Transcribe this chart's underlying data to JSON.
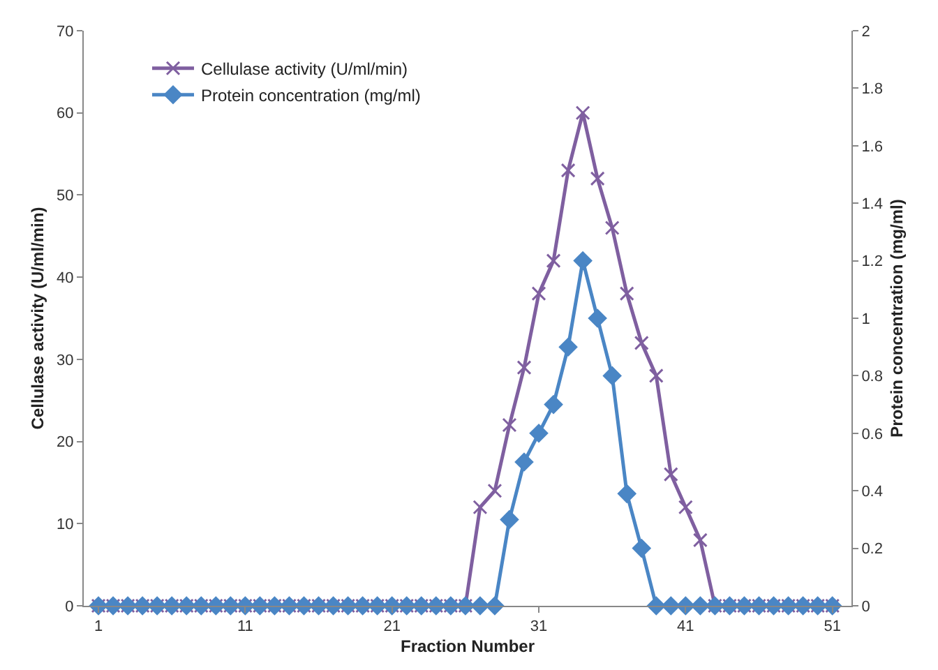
{
  "chart_data": {
    "type": "line",
    "xlabel": "Fraction Number",
    "ylabel": "Cellulase activity (U/ml/min)",
    "y2label": "Protein concentration (mg/ml)",
    "x": [
      1,
      2,
      3,
      4,
      5,
      6,
      7,
      8,
      9,
      10,
      11,
      12,
      13,
      14,
      15,
      16,
      17,
      18,
      19,
      20,
      21,
      22,
      23,
      24,
      25,
      26,
      27,
      28,
      29,
      30,
      31,
      32,
      33,
      34,
      35,
      36,
      37,
      38,
      39,
      40,
      41,
      42,
      43,
      44,
      45,
      46,
      47,
      48,
      49,
      50,
      51
    ],
    "xlim": [
      0,
      52.3
    ],
    "xticks": [
      1,
      11,
      21,
      31,
      41,
      51
    ],
    "ylim": [
      0,
      70
    ],
    "yticks": [
      0,
      10,
      20,
      30,
      40,
      50,
      60,
      70
    ],
    "y2lim": [
      0,
      2
    ],
    "y2ticks": [
      0,
      0.2,
      0.4,
      0.6,
      0.8,
      1,
      1.2,
      1.4,
      1.6,
      1.8,
      2
    ],
    "grid": false,
    "legend": "top left",
    "series": [
      {
        "name": "Cellulase activity (U/ml/min)",
        "color": "#7f5fa0",
        "marker": "cross",
        "values": [
          0,
          0,
          0,
          0,
          0,
          0,
          0,
          0,
          0,
          0,
          0,
          0,
          0,
          0,
          0,
          0,
          0,
          0,
          0,
          0,
          0,
          0,
          0,
          0,
          0,
          0,
          12,
          14,
          22,
          29,
          38,
          42,
          53,
          60,
          52,
          46,
          38,
          32,
          28,
          16,
          12,
          8,
          0,
          0,
          0,
          0,
          0,
          0,
          0,
          0,
          0
        ]
      },
      {
        "name": "Protein concentration (mg/ml)",
        "color": "#4a86c5",
        "marker": "diamond",
        "axis": "y2",
        "values": [
          0,
          0,
          0,
          0,
          0,
          0,
          0,
          0,
          0,
          0,
          0,
          0,
          0,
          0,
          0,
          0,
          0,
          0,
          0,
          0,
          0,
          0,
          0,
          0,
          0,
          0,
          0,
          0,
          0.3,
          0.5,
          0.6,
          0.7,
          0.9,
          1.2,
          1.0,
          0.8,
          0.39,
          0.2,
          0,
          0,
          0,
          0,
          0,
          0,
          0,
          0,
          0,
          0,
          0,
          0,
          0
        ]
      }
    ]
  }
}
